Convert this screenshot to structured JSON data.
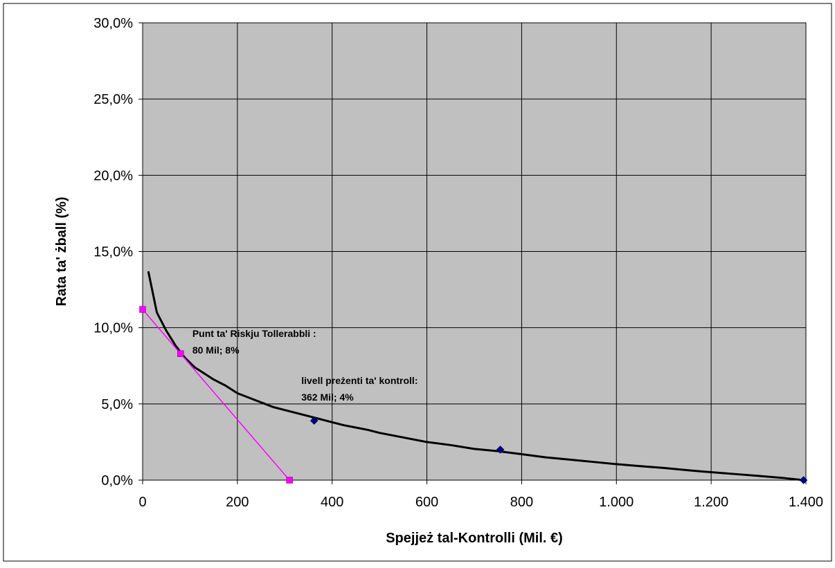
{
  "chart_data": {
    "type": "scatter",
    "xlabel": "Spejjeż tal-Kontrolli (Mil. €)",
    "ylabel": "Rata ta' żball (%)",
    "xlim": [
      0,
      1400
    ],
    "ylim": [
      0,
      30
    ],
    "x_ticks": [
      0,
      200,
      400,
      600,
      800,
      1000,
      1200,
      1400
    ],
    "x_tick_labels": [
      "0",
      "200",
      "400",
      "600",
      "800",
      "1.000",
      "1.200",
      "1.400"
    ],
    "y_ticks": [
      0,
      5,
      10,
      15,
      20,
      25,
      30
    ],
    "y_tick_labels": [
      "0,0%",
      "5,0%",
      "10,0%",
      "15,0%",
      "20,0%",
      "25,0%",
      "30,0%"
    ],
    "grid": true,
    "colors": {
      "plot_background": "#c0c0c0",
      "grid": "#000000",
      "cost_curve": "#000000",
      "tolerable_risk_line": "#ff00ff",
      "markers": "#000080"
    },
    "series": [
      {
        "kind": "line",
        "x": [
          12,
          30,
          50,
          70,
          90,
          110,
          130,
          150,
          175,
          200,
          225,
          250,
          275,
          300,
          325,
          350,
          375,
          400,
          425,
          450,
          475,
          500,
          550,
          600,
          650,
          700,
          750,
          800,
          850,
          900,
          950,
          1000,
          1050,
          1100,
          1150,
          1200,
          1250,
          1300,
          1350,
          1395
        ],
        "y": [
          13.7,
          11.0,
          9.8,
          8.8,
          8.0,
          7.4,
          7.0,
          6.6,
          6.2,
          5.7,
          5.4,
          5.1,
          4.8,
          4.6,
          4.4,
          4.2,
          4.0,
          3.8,
          3.6,
          3.45,
          3.3,
          3.1,
          2.8,
          2.5,
          2.3,
          2.05,
          1.9,
          1.7,
          1.5,
          1.35,
          1.2,
          1.05,
          0.92,
          0.8,
          0.65,
          0.52,
          0.4,
          0.28,
          0.15,
          0.0
        ]
      },
      {
        "kind": "line-markers",
        "x": [
          0,
          80,
          310
        ],
        "y": [
          11.2,
          8.3,
          0.0
        ]
      },
      {
        "kind": "markers",
        "x": [
          362,
          755,
          1395
        ],
        "y": [
          3.9,
          2.0,
          0.0
        ]
      }
    ],
    "annotations": [
      {
        "line1": "Punt ta' Riskju Tollerabbli :",
        "line2": "80 Mil; 8%",
        "x": 105,
        "y": 9.4
      },
      {
        "line1": "livell preżenti ta' kontroll:",
        "line2": "362 Mil; 4%",
        "x": 335,
        "y": 6.3
      }
    ]
  }
}
